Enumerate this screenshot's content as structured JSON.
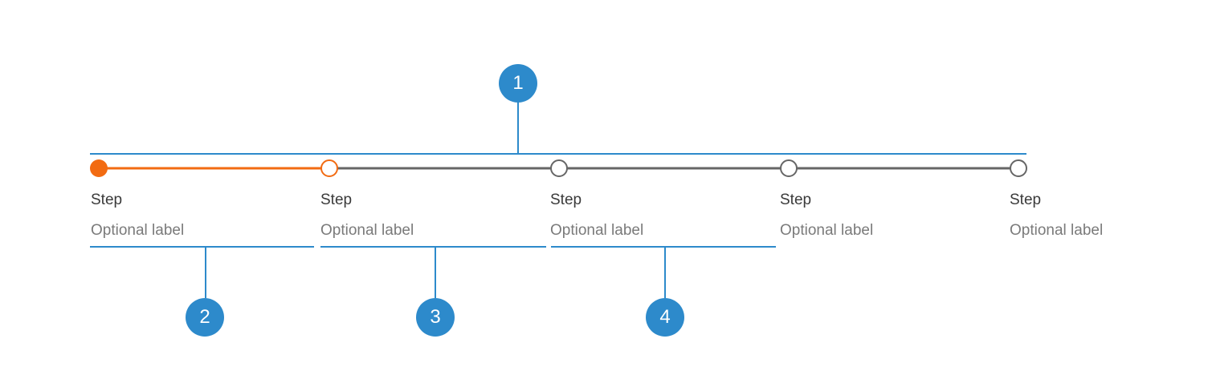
{
  "colors": {
    "active": "#f26b12",
    "inactive": "#666666",
    "annotation": "#2d8acb",
    "step_text": "#3a3a3a",
    "optional_text": "#7a7a7a"
  },
  "steps": [
    {
      "title": "Step",
      "optional_label": "Optional label",
      "state": "completed"
    },
    {
      "title": "Step",
      "optional_label": "Optional label",
      "state": "current"
    },
    {
      "title": "Step",
      "optional_label": "Optional label",
      "state": "upcoming"
    },
    {
      "title": "Step",
      "optional_label": "Optional label",
      "state": "upcoming"
    },
    {
      "title": "Step",
      "optional_label": "Optional label",
      "state": "upcoming"
    }
  ],
  "callouts": [
    {
      "number": "1"
    },
    {
      "number": "2"
    },
    {
      "number": "3"
    },
    {
      "number": "4"
    }
  ]
}
